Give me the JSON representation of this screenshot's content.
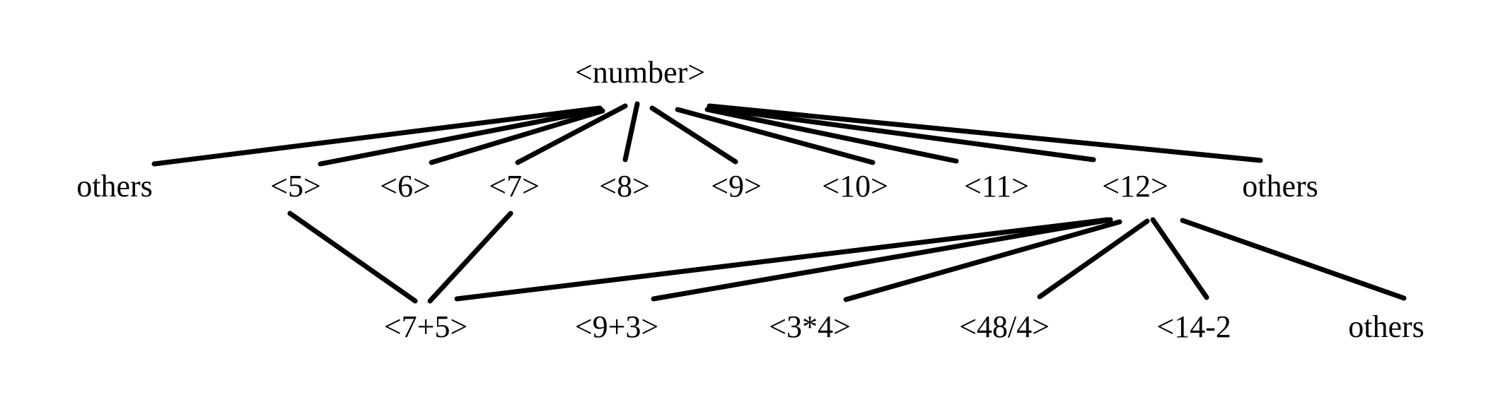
{
  "diagram": {
    "root": {
      "label": "<number>"
    },
    "level1": [
      {
        "label": "others"
      },
      {
        "label": "<5>"
      },
      {
        "label": "<6>"
      },
      {
        "label": "<7>"
      },
      {
        "label": "<8>"
      },
      {
        "label": "<9>"
      },
      {
        "label": "<10>"
      },
      {
        "label": "<11>"
      },
      {
        "label": "<12>"
      },
      {
        "label": "others"
      }
    ],
    "level2": [
      {
        "label": "<7+5>"
      },
      {
        "label": "<9+3>"
      },
      {
        "label": "<3*4>"
      },
      {
        "label": "<48/4>"
      },
      {
        "label": "<14-2"
      },
      {
        "label": "others"
      }
    ],
    "colors": {
      "ink": "#000000",
      "background": "#ffffff"
    }
  }
}
